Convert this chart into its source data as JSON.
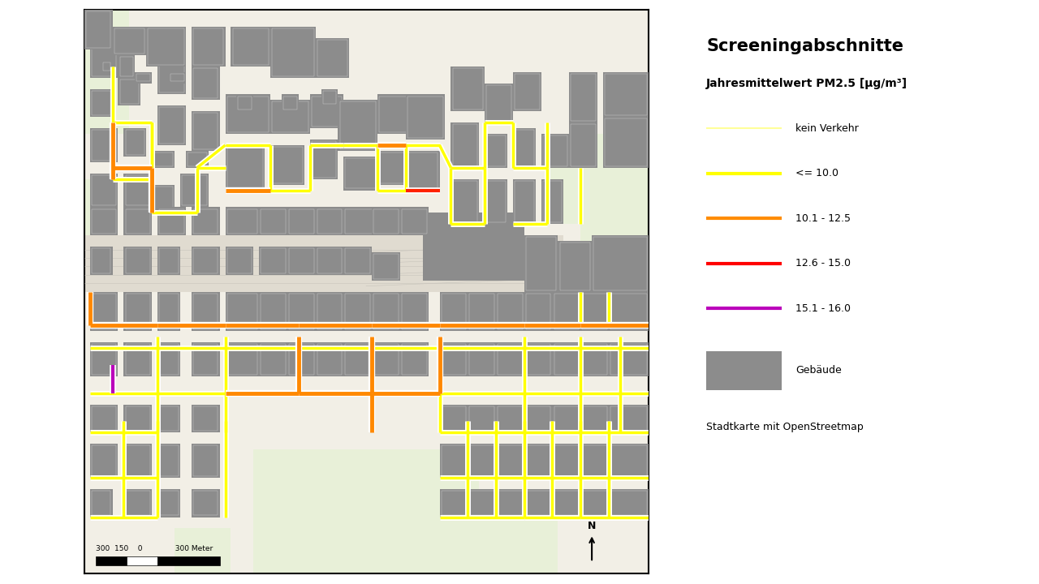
{
  "title": "Screeningabschnitte",
  "subtitle": "Jahresmittelwert PM2.5 [μg/m³]",
  "legend_items": [
    {
      "label": "kein Verkehr",
      "color": "#ffff99",
      "type": "line",
      "lw": 1.5
    },
    {
      "label": "<= 10.0",
      "color": "#ffff00",
      "type": "line",
      "lw": 3
    },
    {
      "label": "10.1 - 12.5",
      "color": "#ff8c00",
      "type": "line",
      "lw": 3
    },
    {
      "label": "12.6 - 15.0",
      "color": "#ff0000",
      "type": "line",
      "lw": 3
    },
    {
      "label": "15.1 - 16.0",
      "color": "#bb00bb",
      "type": "line",
      "lw": 3
    },
    {
      "label": "Gebäude",
      "color": "#8c8c8c",
      "type": "rect"
    },
    {
      "label": "Stadtkarte mit OpenStreetmap",
      "color": null,
      "type": "text"
    }
  ],
  "map_bg": "#f2efe6",
  "building_color": "#b0b0b0",
  "building_dark": "#8c8c8c",
  "park_color": "#e8f0d8",
  "rail_bg": "#e8e4dc",
  "border_color": "#000000",
  "yellow": "#ffff00",
  "orange": "#ff8800",
  "red": "#ff2200",
  "purple": "#bb00bb",
  "light_yellow": "#ffff99",
  "title_fontsize": 15,
  "subtitle_fontsize": 10,
  "legend_fontsize": 9,
  "road_lw_yellow": 2.5,
  "road_lw_orange": 3.5,
  "road_lw_red": 3.0,
  "road_lw_purple": 3.0
}
